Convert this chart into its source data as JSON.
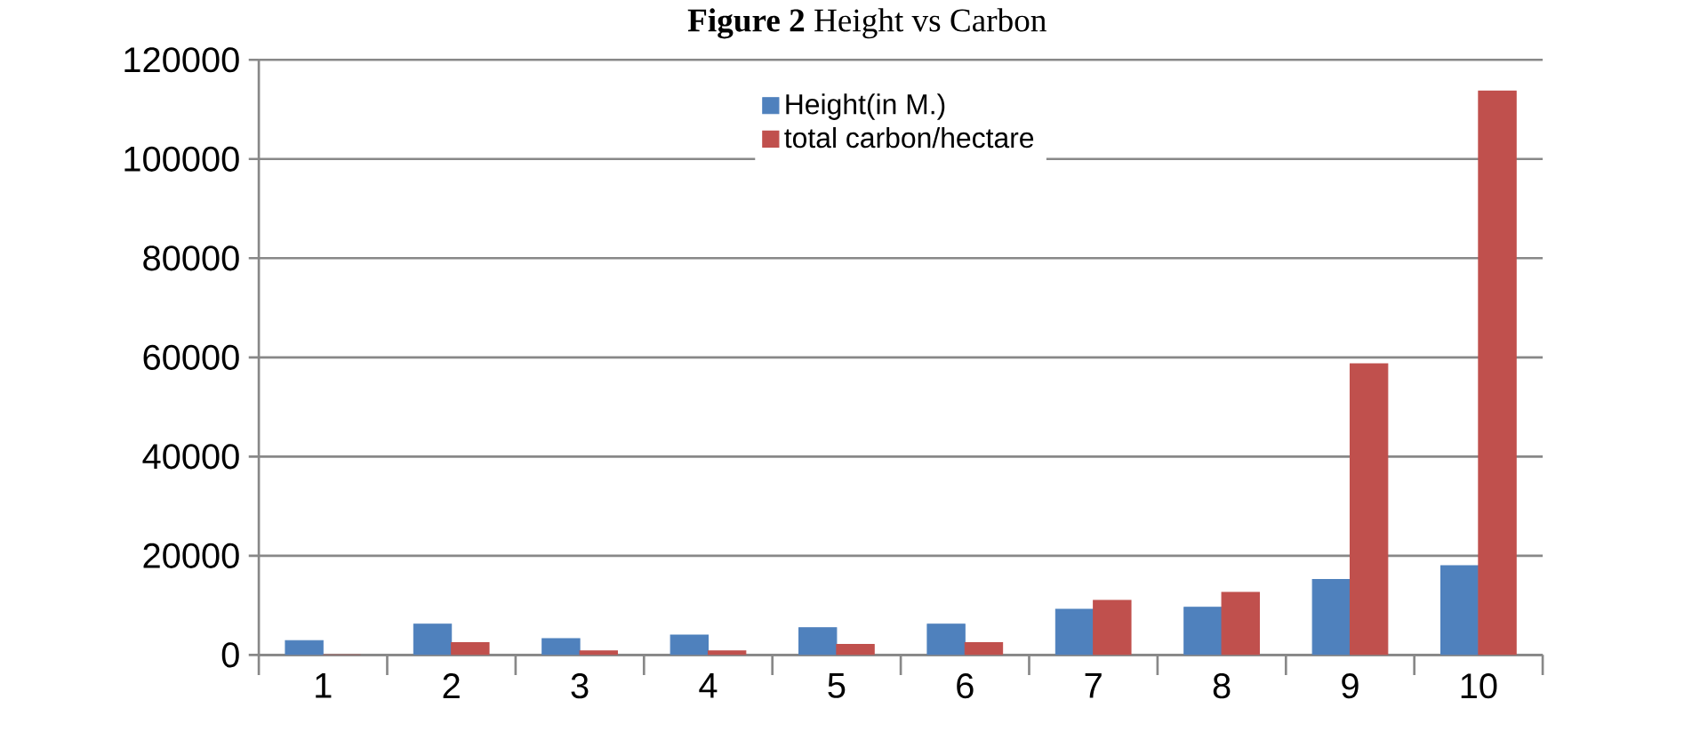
{
  "chart_data": {
    "type": "bar",
    "title": "**Figure 2** Height vs Carbon",
    "categories": [
      "1",
      "2",
      "3",
      "4",
      "5",
      "6",
      "7",
      "8",
      "9",
      "10"
    ],
    "series": [
      {
        "name": "Height(in M.)",
        "color": "#4f81bd",
        "values": [
          2900,
          6200,
          3300,
          4000,
          5500,
          6200,
          9200,
          9600,
          15200,
          18000
        ]
      },
      {
        "name": "total carbon/hectare",
        "color": "#c0504d",
        "values": [
          0,
          2500,
          800,
          800,
          2100,
          2500,
          11000,
          12600,
          58700,
          113700
        ]
      }
    ],
    "ylim": [
      0,
      120000
    ],
    "yticks": [
      0,
      20000,
      40000,
      60000,
      80000,
      100000,
      120000
    ],
    "grid": "y",
    "legend": "top"
  }
}
